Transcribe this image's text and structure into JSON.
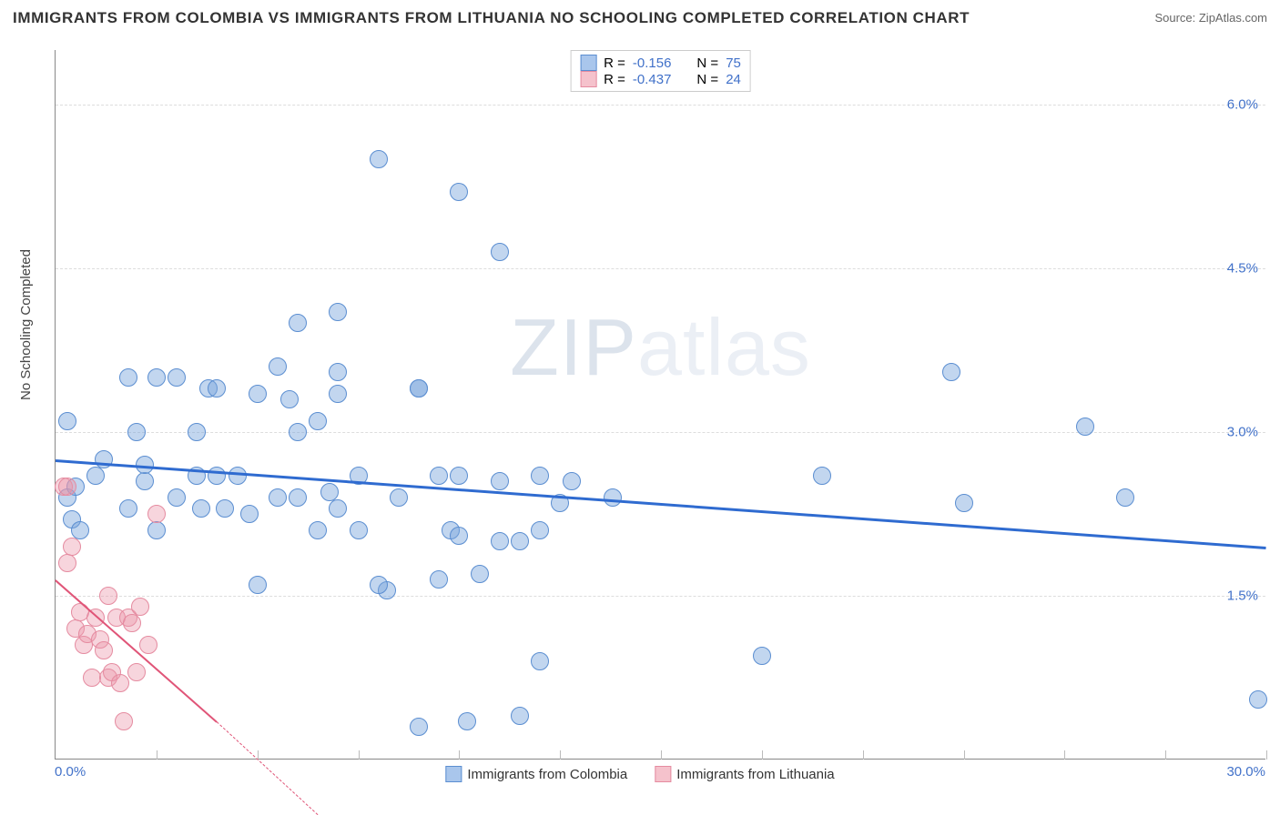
{
  "title": "IMMIGRANTS FROM COLOMBIA VS IMMIGRANTS FROM LITHUANIA NO SCHOOLING COMPLETED CORRELATION CHART",
  "source": "Source: ZipAtlas.com",
  "yaxis_label": "No Schooling Completed",
  "watermark_bold": "ZIP",
  "watermark_thin": "atlas",
  "chart": {
    "type": "scatter",
    "background_color": "#ffffff",
    "grid_color": "#dddddd",
    "axis_color": "#888888",
    "xlim": [
      0,
      30
    ],
    "ylim": [
      0,
      6.5
    ],
    "xticks": [
      0,
      2.5,
      5,
      7.5,
      10,
      12.5,
      15,
      17.5,
      20,
      22.5,
      25,
      27.5,
      30
    ],
    "yticks": [
      1.5,
      3.0,
      4.5,
      6.0
    ],
    "ytick_labels": [
      "1.5%",
      "3.0%",
      "4.5%",
      "6.0%"
    ],
    "xaxis_min_label": "0.0%",
    "xaxis_max_label": "30.0%",
    "label_fontsize": 15,
    "label_color": "#4171c9",
    "point_radius": 10,
    "point_opacity": 0.55,
    "series": [
      {
        "name": "Immigrants from Colombia",
        "swatch_fill": "#a9c6ec",
        "swatch_border": "#5b8ed1",
        "point_fill": "rgba(120,165,220,0.45)",
        "point_border": "#5b8ed1",
        "trend_color": "#2f6bd0",
        "trend_width": 2.5,
        "R": "-0.156",
        "N": "75",
        "trend": {
          "x1": 0,
          "y1": 2.75,
          "x2": 30,
          "y2": 1.95
        },
        "points": [
          [
            0.3,
            3.1
          ],
          [
            0.4,
            2.2
          ],
          [
            0.3,
            2.4
          ],
          [
            0.5,
            2.5
          ],
          [
            0.6,
            2.1
          ],
          [
            1.0,
            2.6
          ],
          [
            1.2,
            2.75
          ],
          [
            1.8,
            3.5
          ],
          [
            2.0,
            3.0
          ],
          [
            2.5,
            3.5
          ],
          [
            1.8,
            2.3
          ],
          [
            2.2,
            2.55
          ],
          [
            2.5,
            2.1
          ],
          [
            2.2,
            2.7
          ],
          [
            3.0,
            3.5
          ],
          [
            3.5,
            3.0
          ],
          [
            3.5,
            2.6
          ],
          [
            3.8,
            3.4
          ],
          [
            3.6,
            2.3
          ],
          [
            4.0,
            2.6
          ],
          [
            4.2,
            2.3
          ],
          [
            4.8,
            2.25
          ],
          [
            5.0,
            1.6
          ],
          [
            5.5,
            2.4
          ],
          [
            5.0,
            3.35
          ],
          [
            5.8,
            3.3
          ],
          [
            6.0,
            4.0
          ],
          [
            6.0,
            3.0
          ],
          [
            6.5,
            2.1
          ],
          [
            6.8,
            2.45
          ],
          [
            7.0,
            3.35
          ],
          [
            7.0,
            4.1
          ],
          [
            7.5,
            2.6
          ],
          [
            7.5,
            2.1
          ],
          [
            8.0,
            5.5
          ],
          [
            9.0,
            3.4
          ],
          [
            8.2,
            1.55
          ],
          [
            9.0,
            0.3
          ],
          [
            9.5,
            1.65
          ],
          [
            9.8,
            2.1
          ],
          [
            10.0,
            2.6
          ],
          [
            10.0,
            5.2
          ],
          [
            10.2,
            0.35
          ],
          [
            10.5,
            1.7
          ],
          [
            11.0,
            2.55
          ],
          [
            11.0,
            4.65
          ],
          [
            11.5,
            2.0
          ],
          [
            12.0,
            2.6
          ],
          [
            12.0,
            0.9
          ],
          [
            12.5,
            2.35
          ],
          [
            12.8,
            2.55
          ],
          [
            17.5,
            0.95
          ],
          [
            19.0,
            2.6
          ],
          [
            22.2,
            3.55
          ],
          [
            22.5,
            2.35
          ],
          [
            25.5,
            3.05
          ],
          [
            26.5,
            2.4
          ],
          [
            29.8,
            0.55
          ],
          [
            3.0,
            2.4
          ],
          [
            4.0,
            3.4
          ],
          [
            6.0,
            2.4
          ],
          [
            7.0,
            3.55
          ],
          [
            7.0,
            2.3
          ],
          [
            8.0,
            1.6
          ],
          [
            8.5,
            2.4
          ],
          [
            9.0,
            3.4
          ],
          [
            9.5,
            2.6
          ],
          [
            10.0,
            2.05
          ],
          [
            11.0,
            2.0
          ],
          [
            11.5,
            0.4
          ],
          [
            12.0,
            2.1
          ],
          [
            5.5,
            3.6
          ],
          [
            4.5,
            2.6
          ],
          [
            6.5,
            3.1
          ],
          [
            13.8,
            2.4
          ]
        ]
      },
      {
        "name": "Immigrants from Lithuania",
        "swatch_fill": "#f5c2cc",
        "swatch_border": "#e58ba0",
        "point_fill": "rgba(235,150,170,0.4)",
        "point_border": "#e58ba0",
        "trend_color": "#e05578",
        "trend_width": 1.5,
        "R": "-0.437",
        "N": "24",
        "trend": {
          "x1": 0,
          "y1": 1.65,
          "x2": 4.0,
          "y2": 0.35
        },
        "trend_dash": {
          "x1": 4.0,
          "y1": 0.35,
          "x2": 6.5,
          "y2": -0.5
        },
        "points": [
          [
            0.2,
            2.5
          ],
          [
            0.3,
            2.5
          ],
          [
            0.3,
            1.8
          ],
          [
            0.4,
            1.95
          ],
          [
            0.5,
            1.2
          ],
          [
            0.6,
            1.35
          ],
          [
            0.7,
            1.05
          ],
          [
            0.8,
            1.15
          ],
          [
            0.9,
            0.75
          ],
          [
            1.0,
            1.3
          ],
          [
            1.1,
            1.1
          ],
          [
            1.2,
            1.0
          ],
          [
            1.3,
            0.75
          ],
          [
            1.4,
            0.8
          ],
          [
            1.5,
            1.3
          ],
          [
            1.6,
            0.7
          ],
          [
            1.8,
            1.3
          ],
          [
            1.9,
            1.25
          ],
          [
            2.0,
            0.8
          ],
          [
            2.1,
            1.4
          ],
          [
            2.3,
            1.05
          ],
          [
            2.5,
            2.25
          ],
          [
            1.3,
            1.5
          ],
          [
            1.7,
            0.35
          ]
        ]
      }
    ]
  },
  "legend_top_rows": [
    {
      "swatch_series": 0,
      "R_label": "R =",
      "N_label": "N ="
    },
    {
      "swatch_series": 1,
      "R_label": "R =",
      "N_label": "N ="
    }
  ]
}
